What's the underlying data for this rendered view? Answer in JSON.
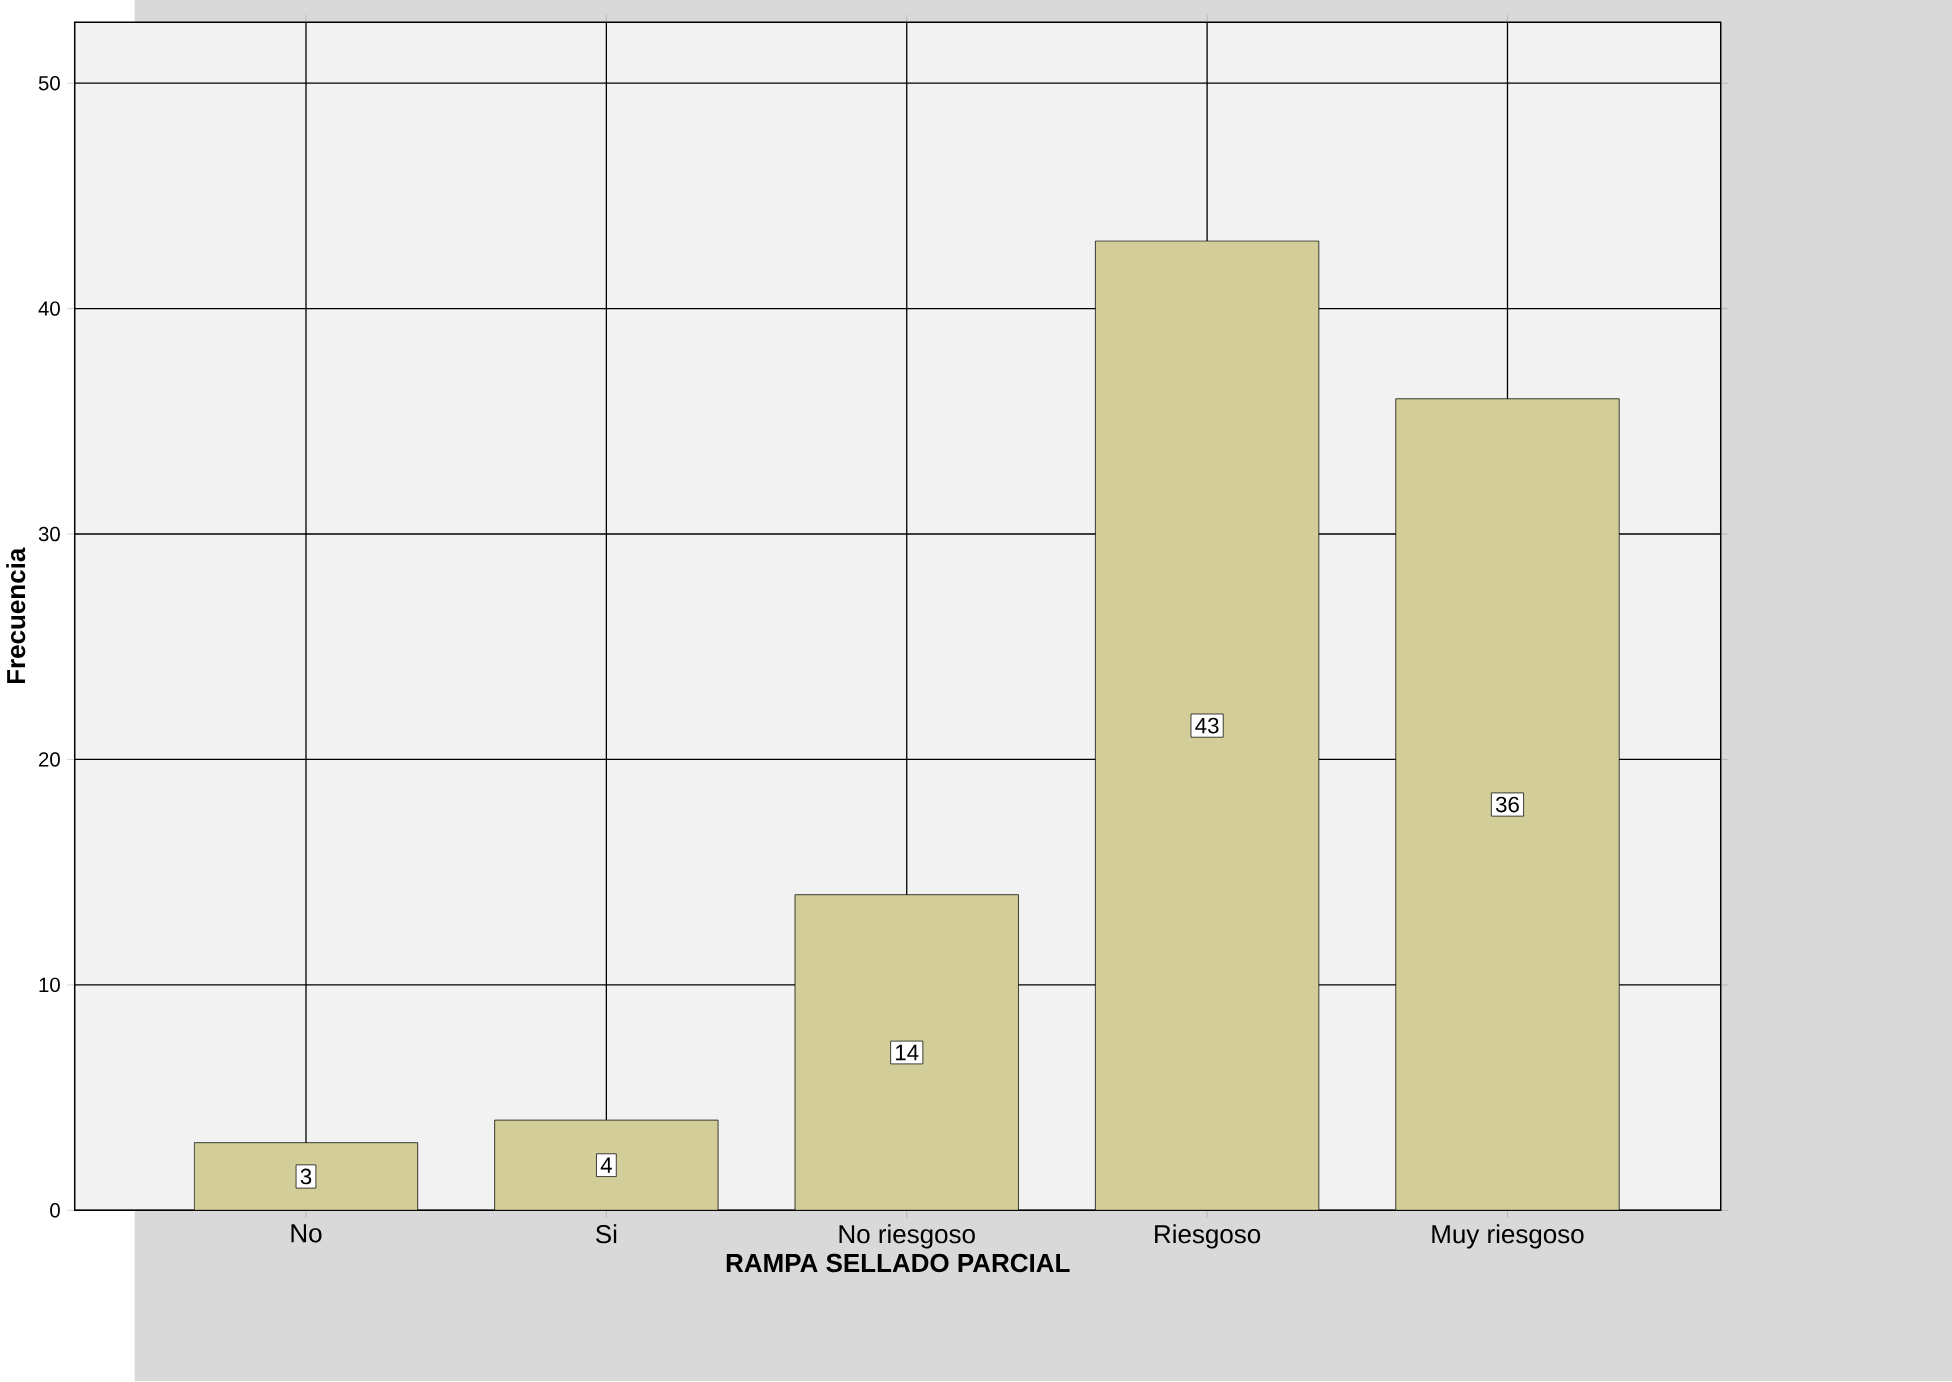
{
  "chart_data": {
    "type": "bar",
    "xlabel": "RAMPA SELLADO PARCIAL",
    "ylabel": "Frecuencia",
    "categories": [
      "No",
      "Si",
      "No riesgoso",
      "Riesgoso",
      "Muy riesgoso"
    ],
    "values": [
      3,
      4,
      14,
      43,
      36
    ],
    "color": "#d3ce99",
    "ylim": [
      0,
      52.7
    ],
    "yticks": [
      0,
      10,
      20,
      30,
      40,
      50
    ],
    "grid": true,
    "data_labels": true
  }
}
